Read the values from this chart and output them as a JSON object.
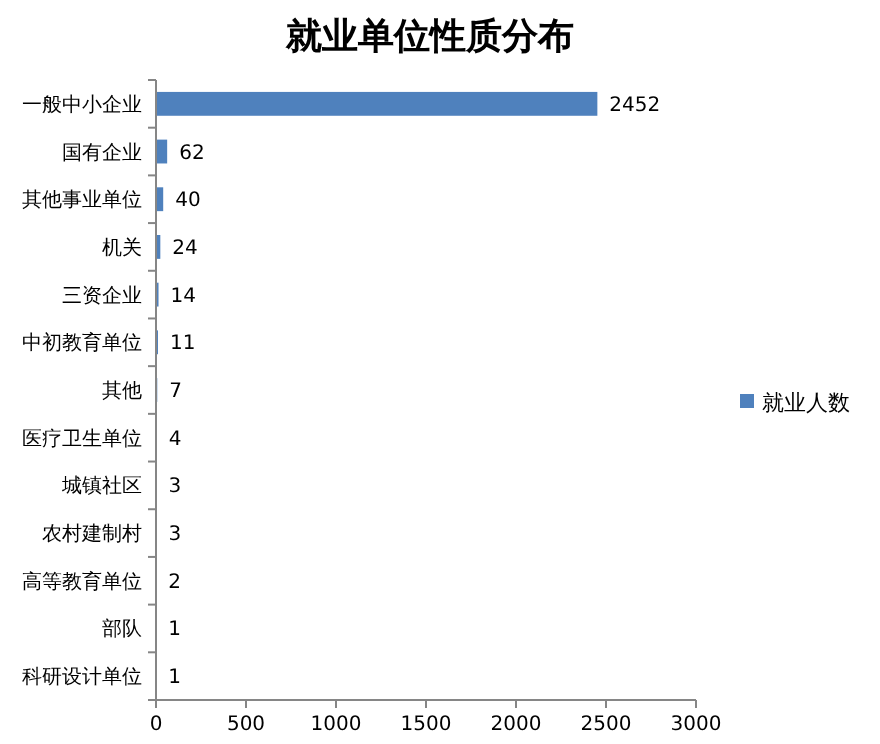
{
  "chart_data": {
    "type": "bar",
    "orientation": "horizontal",
    "title": "就业单位性质分布",
    "categories": [
      "一般中小企业",
      "国有企业",
      "其他事业单位",
      "机关",
      "三资企业",
      "中初教育单位",
      "其他",
      "医疗卫生单位",
      "城镇社区",
      "农村建制村",
      "高等教育单位",
      "部队",
      "科研设计单位"
    ],
    "series": [
      {
        "name": "就业人数",
        "color": "#4f81bd",
        "values": [
          2452,
          62,
          40,
          24,
          14,
          11,
          7,
          4,
          3,
          3,
          2,
          1,
          1
        ]
      }
    ],
    "xlim": [
      0,
      3000
    ],
    "xticks": [
      0,
      500,
      1000,
      1500,
      2000,
      2500,
      3000
    ],
    "data_labels": true,
    "legend": "right",
    "grid": false
  }
}
